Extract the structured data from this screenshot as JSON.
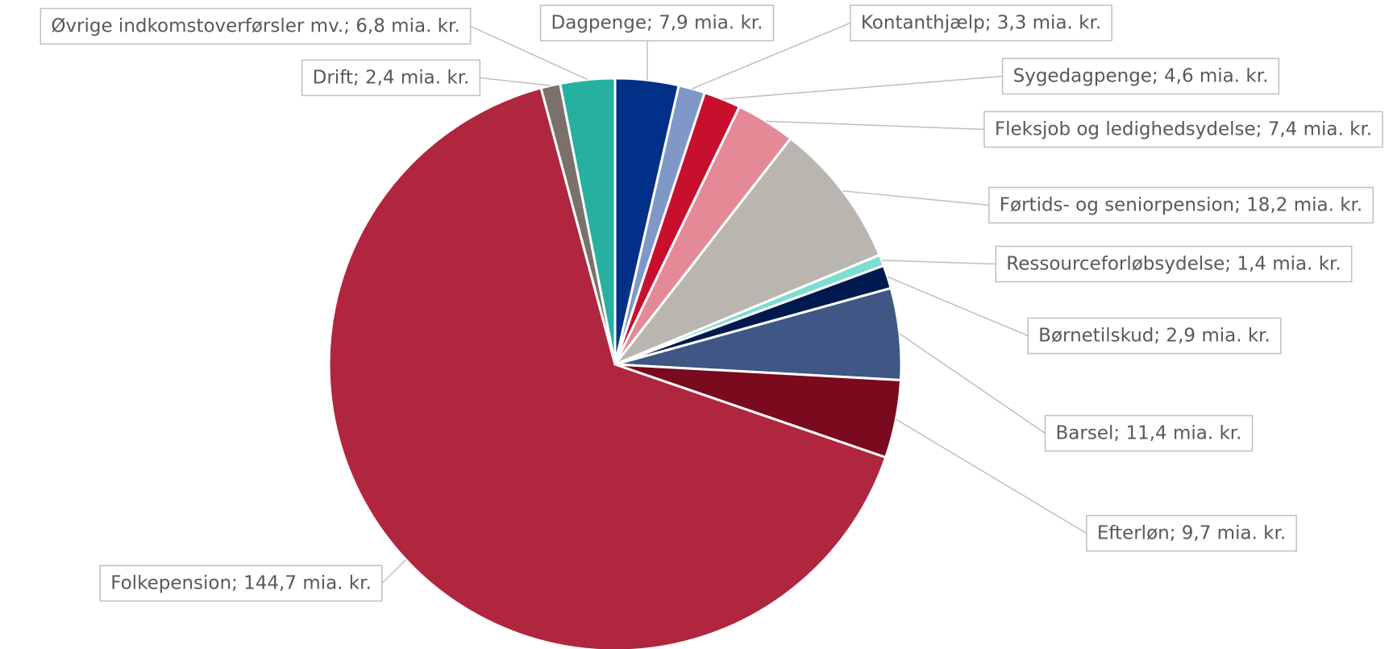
{
  "chart_data": {
    "type": "pie",
    "values": [
      7.9,
      3.3,
      4.6,
      7.4,
      18.2,
      1.4,
      2.9,
      11.4,
      9.7,
      144.7,
      2.4,
      6.8
    ],
    "value_labels": [
      "Dagpenge; 7,9 mia. kr.",
      "Kontanthjælp; 3,3 mia. kr.",
      "Sygedagpenge; 4,6 mia. kr.",
      "Fleksjob og ledighedsydelse; 7,4 mia. kr.",
      "Førtids- og seniorpension; 18,2 mia. kr.",
      "Ressourceforløbsydelse; 1,4 mia. kr.",
      "Børnetilskud; 2,9 mia. kr.",
      "Barsel; 11,4 mia. kr.",
      "Efterløn; 9,7 mia. kr.",
      "Folkepension; 144,7 mia. kr.",
      "Drift; 2,4 mia. kr.",
      "Øvrige indkomstoverførsler mv.; 6,8 mia. kr."
    ],
    "colors": [
      "#003087",
      "#8098c8",
      "#c8102e",
      "#e48a97",
      "#b9b6b0",
      "#7fdcd4",
      "#001a4f",
      "#3e5785",
      "#7a0a1e",
      "#b0263e",
      "#7a726a",
      "#25b0a0"
    ]
  }
}
